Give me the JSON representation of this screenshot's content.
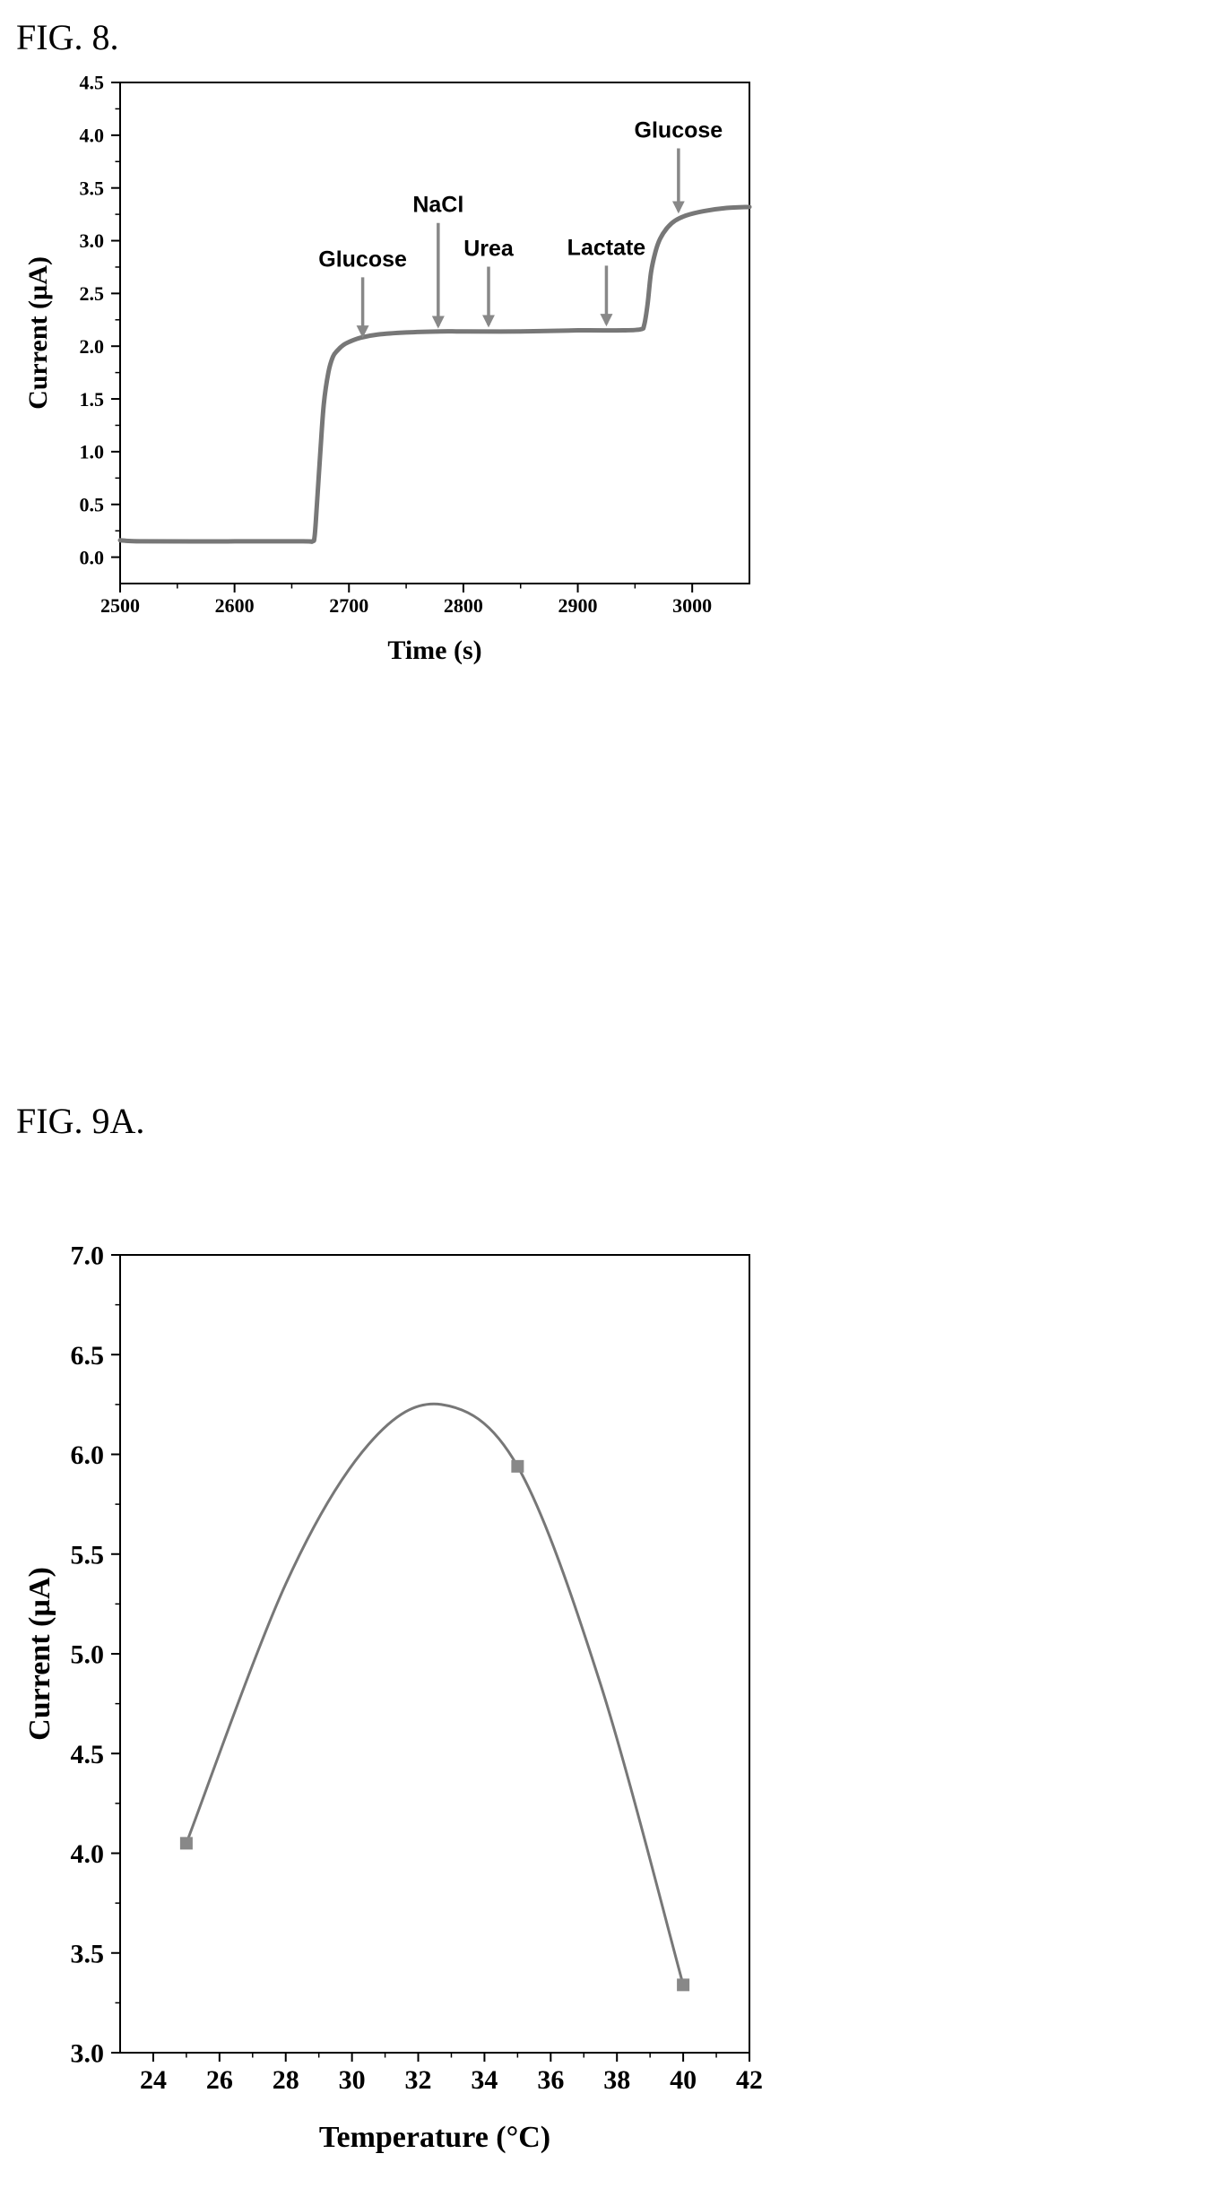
{
  "figures": {
    "fig8_label": "FIG. 8.",
    "fig9a_label": "FIG. 9A."
  },
  "colors": {
    "line": "#777777",
    "arrow": "#888888",
    "marker": "#888888",
    "axis": "#000000"
  },
  "chart_data": [
    {
      "id": "fig8",
      "type": "line",
      "xlabel": "Time (s)",
      "ylabel": "Current (µA)",
      "xlim": [
        2500,
        3050
      ],
      "ylim": [
        -0.25,
        4.5
      ],
      "xticks": [
        2500,
        2600,
        2700,
        2800,
        2900,
        3000
      ],
      "xtick_labels": [
        "2500",
        "2600",
        "2700",
        "2800",
        "2900",
        "3000"
      ],
      "yticks": [
        0,
        0.5,
        1,
        1.5,
        2,
        2.5,
        3,
        3.5,
        4,
        4.5
      ],
      "ytick_labels": [
        "0.0",
        "0.5",
        "1.0",
        "1.5",
        "2.0",
        "2.5",
        "3.0",
        "3.5",
        "4.0",
        "4.5"
      ],
      "grid": false,
      "series": [
        {
          "x": [
            2500,
            2520,
            2600,
            2660,
            2668,
            2670,
            2672,
            2675,
            2678,
            2682,
            2686,
            2690,
            2695,
            2700,
            2710,
            2725,
            2750,
            2780,
            2800,
            2850,
            2900,
            2940,
            2955,
            2958,
            2961,
            2964,
            2968,
            2972,
            2978,
            2985,
            2995,
            3010,
            3030,
            3050
          ],
          "y": [
            0.16,
            0.15,
            0.15,
            0.15,
            0.15,
            0.2,
            0.5,
            1.0,
            1.45,
            1.75,
            1.9,
            1.96,
            2.01,
            2.04,
            2.08,
            2.11,
            2.13,
            2.14,
            2.14,
            2.14,
            2.15,
            2.15,
            2.16,
            2.2,
            2.4,
            2.7,
            2.9,
            3.02,
            3.12,
            3.19,
            3.24,
            3.28,
            3.31,
            3.32
          ]
        }
      ],
      "annotations": [
        {
          "label": "Glucose",
          "x": 2712,
          "y": 2.05
        },
        {
          "label": "NaCl",
          "x": 2778,
          "y": 2.14
        },
        {
          "label": "Urea",
          "x": 2822,
          "y": 2.15
        },
        {
          "label": "Lactate",
          "x": 2925,
          "y": 2.16
        },
        {
          "label": "Glucose",
          "x": 2988,
          "y": 3.23
        }
      ]
    },
    {
      "id": "fig9a",
      "type": "line",
      "xlabel": "Temperature (°C)",
      "ylabel": "Current (µA)",
      "xlim": [
        23,
        42
      ],
      "ylim": [
        3.0,
        7.0
      ],
      "xticks": [
        24,
        26,
        28,
        30,
        32,
        34,
        36,
        38,
        40,
        42
      ],
      "xtick_labels": [
        "24",
        "26",
        "28",
        "30",
        "32",
        "34",
        "36",
        "38",
        "40",
        "42"
      ],
      "yticks": [
        3.0,
        3.5,
        4.0,
        4.5,
        5.0,
        5.5,
        6.0,
        6.5,
        7.0
      ],
      "ytick_labels": [
        "3.0",
        "3.5",
        "4.0",
        "4.5",
        "5.0",
        "5.5",
        "6.0",
        "6.5",
        "7.0"
      ],
      "grid": false,
      "series": [
        {
          "x": [
            25,
            35,
            40
          ],
          "y": [
            4.05,
            5.94,
            3.34
          ]
        }
      ]
    }
  ]
}
